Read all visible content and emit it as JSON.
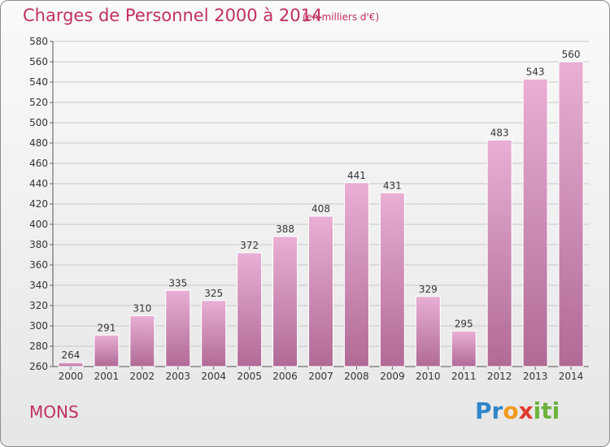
{
  "header": {
    "title": "Charges de Personnel 2000 à 2014",
    "subtitle": "(en milliers d'€)"
  },
  "footer": {
    "place": "MONS",
    "logo_letters": [
      "P",
      "r",
      "o",
      "x",
      "i",
      "t",
      "i"
    ],
    "logo_colors": [
      "#2f86c8",
      "#2f86c8",
      "#f29a1c",
      "#e23b2e",
      "#6bb33c",
      "#6bb33c",
      "#6bb33c"
    ]
  },
  "colors": {
    "bar_top": "#e9afd4",
    "bar_bottom": "#b06a96",
    "accent": "#c1305f"
  },
  "chart_data": {
    "type": "bar",
    "title": "Charges de Personnel 2000 à 2014",
    "subtitle": "(en milliers d'€)",
    "categories": [
      "2000",
      "2001",
      "2002",
      "2003",
      "2004",
      "2005",
      "2006",
      "2007",
      "2008",
      "2009",
      "2010",
      "2011",
      "2012",
      "2013",
      "2014"
    ],
    "values": [
      264,
      291,
      310,
      335,
      325,
      372,
      388,
      408,
      441,
      431,
      329,
      295,
      483,
      543,
      560
    ],
    "yticks": [
      "260",
      "280",
      "300",
      "320",
      "340",
      "360",
      "380",
      "400",
      "420",
      "440",
      "460",
      "480",
      "500",
      "520",
      "540",
      "560",
      "580"
    ],
    "ylim": [
      260,
      580
    ],
    "grid": true
  }
}
